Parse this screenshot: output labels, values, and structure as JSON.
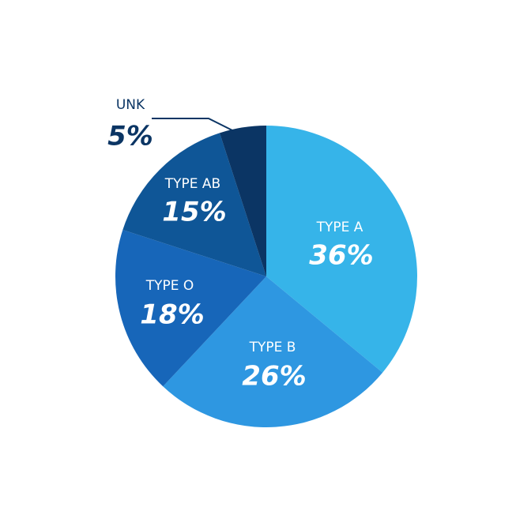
{
  "chart_data": {
    "type": "pie",
    "categories": [
      "TYPE A",
      "TYPE B",
      "TYPE O",
      "TYPE AB",
      "UNK"
    ],
    "values": [
      36,
      26,
      18,
      15,
      5
    ],
    "value_labels": [
      "36%",
      "26%",
      "18%",
      "15%",
      "5%"
    ],
    "colors": [
      "#36b4e9",
      "#2e97e1",
      "#1766b9",
      "#0f5697",
      "#0b3564"
    ]
  }
}
